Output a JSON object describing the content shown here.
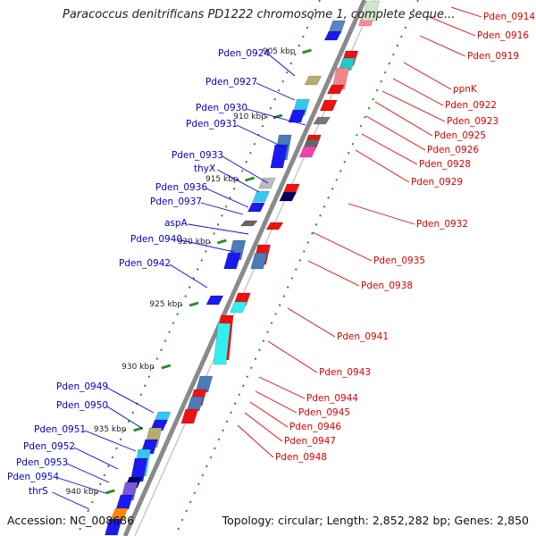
{
  "title": "Paracoccus denitrificans PD1222 chromosome 1, complete seque...",
  "footer": {
    "accession": "Accession: NC_008686",
    "summary": "Topology: circular; Length: 2,852,282 bp; Genes: 2,850"
  },
  "colors": {
    "forward_label": "#0000cc",
    "reverse_label": "#dd0000",
    "backbone": "#888888",
    "tick": "#2a8a2a"
  },
  "kbp_ticks": [
    "905 kbp",
    "910 kbp",
    "915 kbp",
    "920 kbp",
    "925 kbp",
    "930 kbp",
    "935 kbp",
    "940 kbp"
  ],
  "forward_genes": [
    "Pden_0924",
    "Pden_0927",
    "Pden_0930",
    "Pden_0931",
    "Pden_0933",
    "thyX",
    "Pden_0936",
    "Pden_0937",
    "aspA",
    "Pden_0940",
    "Pden_0942",
    "Pden_0949",
    "Pden_0950",
    "Pden_0951",
    "Pden_0952",
    "Pden_0953",
    "Pden_0954",
    "thrS"
  ],
  "reverse_genes": [
    "Pden_0914",
    "Pden_0916",
    "Pden_0919",
    "ppnK",
    "Pden_0922",
    "Pden_0923",
    "Pden_0925",
    "Pden_0926",
    "Pden_0928",
    "Pden_0929",
    "Pden_0932",
    "Pden_0935",
    "Pden_0938",
    "Pden_0941",
    "Pden_0943",
    "Pden_0944",
    "Pden_0945",
    "Pden_0946",
    "Pden_0947",
    "Pden_0948"
  ]
}
